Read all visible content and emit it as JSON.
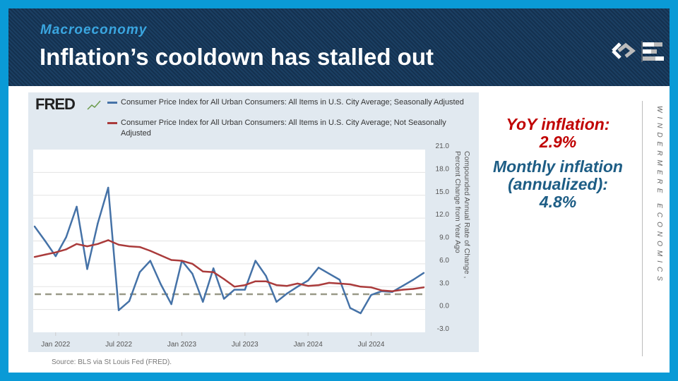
{
  "header": {
    "section": "Macroeconomy",
    "title": "Inflation’s cooldown has stalled out"
  },
  "fred_logo": "FRED",
  "stats": {
    "yoy_label": "YoY inflation:",
    "yoy_value": "2.9%",
    "monthly_label_1": "Monthly inflation",
    "monthly_label_2": "(annualized):",
    "monthly_value": "4.8%"
  },
  "brand": "WINDERMERE ECONOMICS",
  "source": "Source: BLS via St Louis Fed (FRED).",
  "colors": {
    "sa": "#4572a7",
    "nsa": "#aa3b3b",
    "target": "#999988",
    "accent_red": "#c00000",
    "accent_blue": "#1d5d85"
  },
  "chart_data": {
    "type": "line",
    "x": [
      "2021-11",
      "2021-12",
      "2022-01",
      "2022-02",
      "2022-03",
      "2022-04",
      "2022-05",
      "2022-06",
      "2022-07",
      "2022-08",
      "2022-09",
      "2022-10",
      "2022-11",
      "2022-12",
      "2023-01",
      "2023-02",
      "2023-03",
      "2023-04",
      "2023-05",
      "2023-06",
      "2023-07",
      "2023-08",
      "2023-09",
      "2023-10",
      "2023-11",
      "2023-12",
      "2024-01",
      "2024-02",
      "2024-03",
      "2024-04",
      "2024-05",
      "2024-06",
      "2024-07",
      "2024-08",
      "2024-09",
      "2024-10",
      "2024-11",
      "2024-12"
    ],
    "series": [
      {
        "name": "Consumer Price Index for All Urban Consumers: All Items in U.S. City Average; Seasonally Adjusted",
        "values": [
          10.9,
          9.0,
          7.0,
          9.5,
          13.5,
          5.3,
          11.3,
          16.0,
          -0.1,
          1.1,
          4.9,
          6.4,
          3.3,
          0.7,
          6.4,
          4.7,
          1.0,
          5.4,
          1.4,
          2.6,
          2.6,
          6.4,
          4.4,
          1.0,
          2.1,
          3.0,
          3.8,
          5.5,
          4.7,
          3.9,
          0.2,
          -0.5,
          1.9,
          2.4,
          2.3,
          3.1,
          3.9,
          4.8
        ]
      },
      {
        "name": "Consumer Price Index for All Urban Consumers: All Items in U.S. City Average; Not Seasonally Adjusted",
        "values": [
          6.9,
          7.2,
          7.5,
          7.9,
          8.6,
          8.3,
          8.6,
          9.1,
          8.5,
          8.3,
          8.2,
          7.7,
          7.1,
          6.5,
          6.4,
          6.0,
          5.0,
          4.9,
          4.0,
          3.0,
          3.2,
          3.7,
          3.7,
          3.2,
          3.1,
          3.4,
          3.1,
          3.2,
          3.5,
          3.4,
          3.3,
          3.0,
          2.9,
          2.5,
          2.4,
          2.6,
          2.7,
          2.9
        ]
      }
    ],
    "reference_line": 2.0,
    "xticks": [
      {
        "label": "Jan 2022",
        "x": "2022-01"
      },
      {
        "label": "Jul 2022",
        "x": "2022-07"
      },
      {
        "label": "Jan 2023",
        "x": "2023-01"
      },
      {
        "label": "Jul 2023",
        "x": "2023-07"
      },
      {
        "label": "Jan 2024",
        "x": "2024-01"
      },
      {
        "label": "Jul 2024",
        "x": "2024-07"
      }
    ],
    "yticks": [
      "21.0",
      "18.0",
      "15.0",
      "12.0",
      "9.0",
      "6.0",
      "3.0",
      "0.0",
      "-3.0"
    ],
    "ylim": [
      -3,
      21
    ],
    "ylabel": "Compounded Annual Rate of Change , Percent Change from Year Ago",
    "grid": true,
    "legend": "top"
  }
}
